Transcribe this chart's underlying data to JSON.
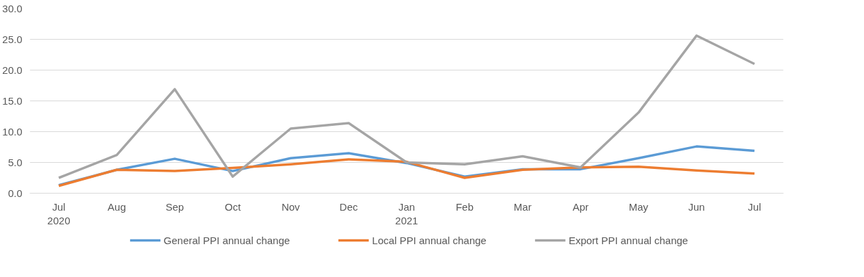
{
  "chart_data": {
    "type": "line",
    "categories": [
      "Jul\n2020",
      "Aug",
      "Sep",
      "Oct",
      "Nov",
      "Dec",
      "Jan\n2021",
      "Feb",
      "Mar",
      "Apr",
      "May",
      "Jun",
      "Jul"
    ],
    "series": [
      {
        "name": "General PPI annual change",
        "color": "#5b9bd5",
        "values": [
          1.3,
          3.8,
          5.6,
          3.6,
          5.7,
          6.5,
          4.9,
          2.7,
          3.9,
          3.9,
          5.7,
          7.6,
          6.9
        ]
      },
      {
        "name": "Local PPI annual change",
        "color": "#ed7d31",
        "values": [
          1.2,
          3.8,
          3.6,
          4.1,
          4.7,
          5.5,
          5.1,
          2.5,
          3.8,
          4.2,
          4.3,
          3.7,
          3.2
        ]
      },
      {
        "name": "Export PPI annual change",
        "color": "#a5a5a5",
        "values": [
          2.5,
          6.2,
          16.9,
          2.7,
          10.5,
          11.4,
          5.0,
          4.7,
          6.0,
          4.2,
          13.1,
          25.6,
          21.0
        ]
      }
    ],
    "ylim": [
      0,
      30
    ],
    "yticks": [
      {
        "value": 0,
        "label": "0.0"
      },
      {
        "value": 5,
        "label": "5.0"
      },
      {
        "value": 10,
        "label": "10.0"
      },
      {
        "value": 15,
        "label": "15.0"
      },
      {
        "value": 20,
        "label": "20.0"
      },
      {
        "value": 25,
        "label": "25.0"
      },
      {
        "value": 30,
        "label": "30.0"
      }
    ],
    "grid": "y",
    "legend": "bottom",
    "line_style": "solid",
    "marker": "none"
  }
}
